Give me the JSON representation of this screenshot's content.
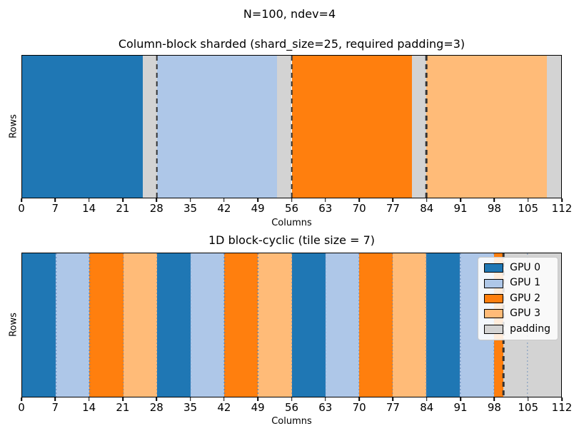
{
  "figure": {
    "suptitle": "N=100, ndev=4"
  },
  "colors": {
    "GPU 0": "#1f77b4",
    "GPU 1": "#aec7e8",
    "GPU 2": "#ff7f0e",
    "GPU 3": "#ffbb78",
    "padding": "#d3d3d3"
  },
  "style": {
    "boundary_line_color": "#333333",
    "tile_gridline_color": "rgba(80,125,180,0.70)"
  },
  "chart_data": [
    {
      "type": "heatmap",
      "title": "Column-block sharded (shard_size=25, required padding=3)",
      "xlabel": "Columns",
      "ylabel": "Rows",
      "xlim": [
        0,
        112
      ],
      "xticks": [
        0,
        7,
        14,
        21,
        28,
        35,
        42,
        49,
        56,
        63,
        70,
        77,
        84,
        91,
        98,
        105,
        112
      ],
      "segments": [
        {
          "start": 0,
          "end": 25,
          "owner": "GPU 0"
        },
        {
          "start": 25,
          "end": 28,
          "owner": "padding"
        },
        {
          "start": 28,
          "end": 53,
          "owner": "GPU 1"
        },
        {
          "start": 53,
          "end": 56,
          "owner": "padding"
        },
        {
          "start": 56,
          "end": 81,
          "owner": "GPU 2"
        },
        {
          "start": 81,
          "end": 84,
          "owner": "padding"
        },
        {
          "start": 84,
          "end": 109,
          "owner": "GPU 3"
        },
        {
          "start": 109,
          "end": 112,
          "owner": "padding"
        }
      ],
      "boundary_lines": [
        28,
        56,
        84
      ],
      "gridlines": [],
      "legend": null
    },
    {
      "type": "heatmap",
      "title": "1D block-cyclic (tile size = 7)",
      "xlabel": "Columns",
      "ylabel": "Rows",
      "xlim": [
        0,
        112
      ],
      "xticks": [
        0,
        7,
        14,
        21,
        28,
        35,
        42,
        49,
        56,
        63,
        70,
        77,
        84,
        91,
        98,
        105,
        112
      ],
      "segments": [
        {
          "start": 0,
          "end": 7,
          "owner": "GPU 0"
        },
        {
          "start": 7,
          "end": 14,
          "owner": "GPU 1"
        },
        {
          "start": 14,
          "end": 21,
          "owner": "GPU 2"
        },
        {
          "start": 21,
          "end": 28,
          "owner": "GPU 3"
        },
        {
          "start": 28,
          "end": 35,
          "owner": "GPU 0"
        },
        {
          "start": 35,
          "end": 42,
          "owner": "GPU 1"
        },
        {
          "start": 42,
          "end": 49,
          "owner": "GPU 2"
        },
        {
          "start": 49,
          "end": 56,
          "owner": "GPU 3"
        },
        {
          "start": 56,
          "end": 63,
          "owner": "GPU 0"
        },
        {
          "start": 63,
          "end": 70,
          "owner": "GPU 1"
        },
        {
          "start": 70,
          "end": 77,
          "owner": "GPU 2"
        },
        {
          "start": 77,
          "end": 84,
          "owner": "GPU 3"
        },
        {
          "start": 84,
          "end": 91,
          "owner": "GPU 0"
        },
        {
          "start": 91,
          "end": 98,
          "owner": "GPU 1"
        },
        {
          "start": 98,
          "end": 100,
          "owner": "GPU 2"
        },
        {
          "start": 100,
          "end": 112,
          "owner": "padding"
        }
      ],
      "boundary_lines": [
        100
      ],
      "gridlines": [
        7,
        14,
        21,
        28,
        35,
        42,
        49,
        56,
        63,
        70,
        77,
        84,
        91,
        98,
        105
      ],
      "legend": {
        "position": "upper right",
        "entries": [
          "GPU 0",
          "GPU 1",
          "GPU 2",
          "GPU 3",
          "padding"
        ]
      }
    }
  ]
}
